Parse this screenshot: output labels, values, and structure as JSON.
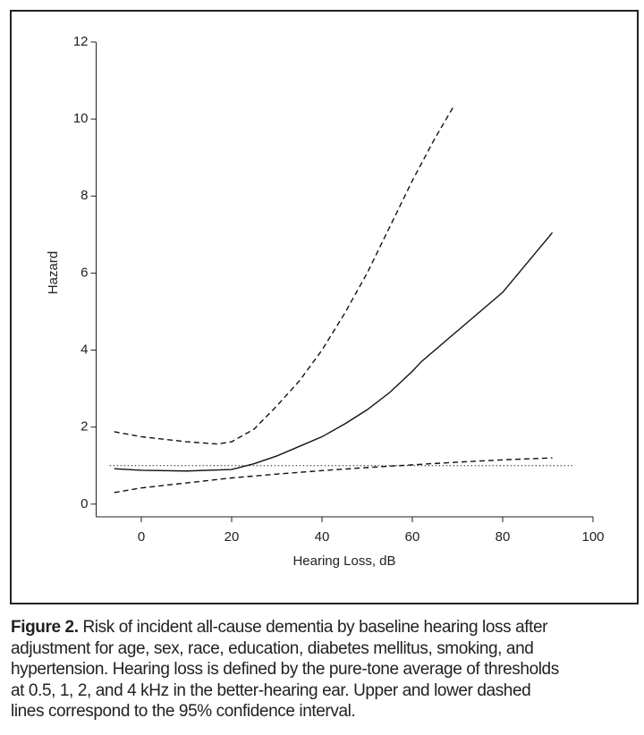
{
  "chart_data": {
    "type": "line",
    "xlabel": "Hearing Loss, dB",
    "ylabel": "Hazard",
    "xlim": [
      -10,
      100
    ],
    "ylim": [
      -0.33,
      12
    ],
    "xticks": [
      0,
      20,
      40,
      60,
      80,
      100
    ],
    "yticks": [
      0,
      2,
      4,
      6,
      8,
      10,
      12
    ],
    "reference_line": {
      "y": 1,
      "x": [
        -7,
        96
      ],
      "style": "dotted"
    },
    "series": [
      {
        "color": "#111",
        "style": "solid",
        "x": [
          -6,
          0,
          10,
          20,
          25,
          30,
          35,
          40,
          45,
          50,
          55,
          60,
          62,
          70,
          80,
          91
        ],
        "values": [
          0.92,
          0.88,
          0.86,
          0.9,
          1.05,
          1.25,
          1.5,
          1.75,
          2.08,
          2.45,
          2.9,
          3.45,
          3.7,
          4.5,
          5.5,
          7.05
        ]
      },
      {
        "color": "#111",
        "style": "dashed",
        "x": [
          -6,
          0,
          10,
          17,
          20,
          25,
          30,
          35,
          40,
          45,
          50,
          55,
          60,
          65,
          69
        ],
        "values": [
          1.88,
          1.75,
          1.62,
          1.56,
          1.62,
          1.95,
          2.55,
          3.2,
          4.0,
          4.95,
          6.0,
          7.2,
          8.4,
          9.5,
          10.3
        ]
      },
      {
        "color": "#111",
        "style": "dashed",
        "x": [
          -6,
          0,
          10,
          20,
          30,
          40,
          50,
          60,
          70,
          80,
          91
        ],
        "values": [
          0.3,
          0.42,
          0.55,
          0.68,
          0.78,
          0.87,
          0.95,
          1.02,
          1.09,
          1.15,
          1.2
        ]
      }
    ]
  },
  "caption": {
    "label": "Figure 2.",
    "lines": [
      "Risk of incident all-cause dementia by baseline hearing loss after",
      "adjustment for age, sex, race, education, diabetes mellitus, smoking, and",
      "hypertension. Hearing loss is defined by the pure-tone average of thresholds",
      "at 0.5, 1, 2, and 4 kHz in the better-hearing ear. Upper and lower dashed",
      "lines correspond to the 95% confidence interval."
    ]
  }
}
